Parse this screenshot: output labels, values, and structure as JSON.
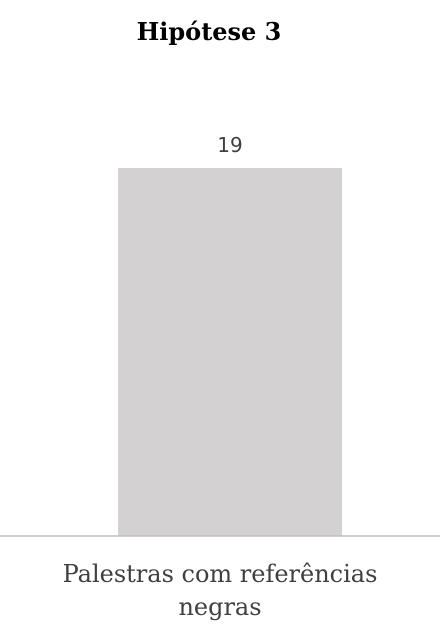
{
  "chart_data": {
    "type": "bar",
    "title": "Hipótese 3",
    "categories": [
      "Palestras com referências negras"
    ],
    "values": [
      19
    ],
    "color": "#d3d1d1"
  }
}
